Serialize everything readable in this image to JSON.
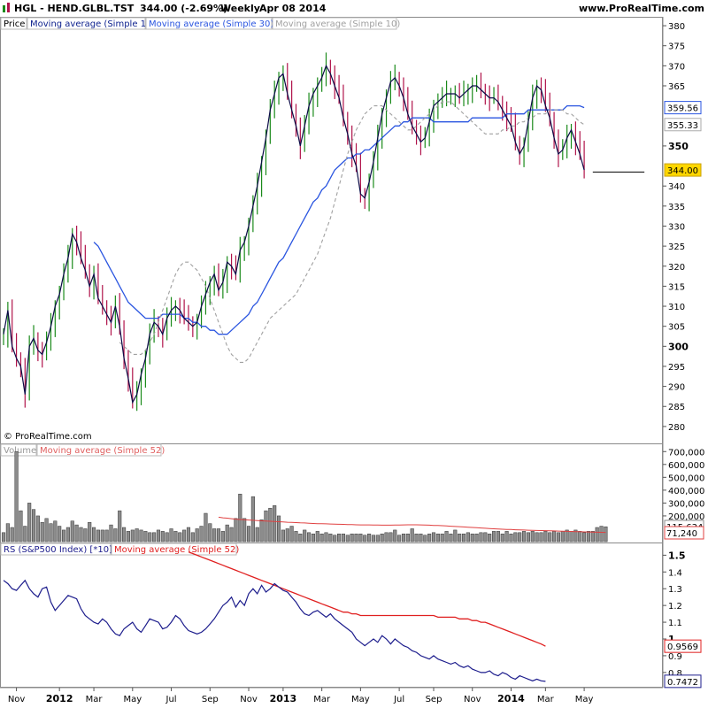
{
  "header": {
    "symbol_title": "HGL - HEND.GLBL.TST",
    "last_change": "344.00 (-2.69%)",
    "period": "Weekly",
    "date": "Apr 08 2014",
    "site": "www.ProRealTime.com",
    "watermark": "© ProRealTime.com"
  },
  "colors": {
    "up": "#1a8a1a",
    "down": "#b0134a",
    "close_line": "#0a0a46",
    "ma1": "#0a1e8c",
    "ma30": "#2a55e0",
    "ma10": "#a0a0a0",
    "volume_bar": "#8c8c8c",
    "volume_ma": "#e04040",
    "rs_line": "#1c1c8c",
    "rs_ma": "#e02020",
    "last_badge": "#ffd700"
  },
  "price_panel": {
    "legend": [
      "Price",
      "Moving average (Simple 1)",
      "Moving average (Simple 30)",
      "Moving average (Simple 10)"
    ],
    "ylim": [
      276,
      382
    ],
    "ticks": [
      {
        "value": 380,
        "label": "380",
        "bold": false
      },
      {
        "value": 375,
        "label": "375",
        "bold": false
      },
      {
        "value": 370,
        "label": "370",
        "bold": false
      },
      {
        "value": 365,
        "label": "365",
        "bold": false
      },
      {
        "value": 350,
        "label": "350",
        "bold": true
      },
      {
        "value": 340,
        "label": "340",
        "bold": false
      },
      {
        "value": 335,
        "label": "335",
        "bold": false
      },
      {
        "value": 330,
        "label": "330",
        "bold": false
      },
      {
        "value": 325,
        "label": "325",
        "bold": false
      },
      {
        "value": 320,
        "label": "320",
        "bold": false
      },
      {
        "value": 315,
        "label": "315",
        "bold": false
      },
      {
        "value": 310,
        "label": "310",
        "bold": false
      },
      {
        "value": 305,
        "label": "305",
        "bold": false
      },
      {
        "value": 300,
        "label": "300",
        "bold": true
      },
      {
        "value": 295,
        "label": "295",
        "bold": false
      },
      {
        "value": 290,
        "label": "290",
        "bold": false
      },
      {
        "value": 285,
        "label": "285",
        "bold": false
      },
      {
        "value": 280,
        "label": "280",
        "bold": false
      }
    ],
    "badges": [
      {
        "value": 359.56,
        "label": "359.56",
        "style": "ma30"
      },
      {
        "value": 355.33,
        "label": "355.33",
        "style": "ma10"
      },
      {
        "value": 344.0,
        "label": "344.00",
        "style": "last"
      }
    ],
    "support_line": {
      "value": 343.5,
      "from_week": 137,
      "to_week": 149
    }
  },
  "volume_panel": {
    "legend": [
      "Volume",
      "Moving average (Simple 52)"
    ],
    "ylim": [
      0,
      750000
    ],
    "ticks": [
      {
        "value": 700000,
        "label": "700,000"
      },
      {
        "value": 600000,
        "label": "600,000"
      },
      {
        "value": 500000,
        "label": "500,000"
      },
      {
        "value": 400000,
        "label": "400,000"
      },
      {
        "value": 300000,
        "label": "300,000"
      },
      {
        "value": 200000,
        "label": "200,000"
      }
    ],
    "badges": [
      {
        "value": 115634,
        "label": "115,634",
        "style": "vol"
      },
      {
        "value": 71240,
        "label": "71,240",
        "style": "volma"
      }
    ]
  },
  "rs_panel": {
    "legend": [
      "RS (S&P500 Index) [*10]",
      "Moving average (Simple 52)"
    ],
    "ylim": [
      0.72,
      1.56
    ],
    "ticks": [
      {
        "value": 1.5,
        "label": "1.5",
        "bold": true
      },
      {
        "value": 1.4,
        "label": "1.4",
        "bold": false
      },
      {
        "value": 1.3,
        "label": "1.3",
        "bold": false
      },
      {
        "value": 1.2,
        "label": "1.2",
        "bold": false
      },
      {
        "value": 1.1,
        "label": "1.1",
        "bold": false
      },
      {
        "value": 1.0,
        "label": "1",
        "bold": true
      },
      {
        "value": 0.9,
        "label": "0.9",
        "bold": false
      },
      {
        "value": 0.8,
        "label": "0.8",
        "bold": false
      }
    ],
    "badges": [
      {
        "value": 0.9569,
        "label": "0.9569",
        "style": "rsma"
      },
      {
        "value": 0.7472,
        "label": "0.7472",
        "style": "rs"
      }
    ]
  },
  "x_axis": {
    "labels": [
      {
        "week": 3,
        "label": "Nov",
        "bold": false
      },
      {
        "week": 13,
        "label": "2012",
        "bold": true
      },
      {
        "week": 21,
        "label": "Mar",
        "bold": false
      },
      {
        "week": 30,
        "label": "May",
        "bold": false
      },
      {
        "week": 39,
        "label": "Jul",
        "bold": false
      },
      {
        "week": 48,
        "label": "Sep",
        "bold": false
      },
      {
        "week": 57,
        "label": "Nov",
        "bold": false
      },
      {
        "week": 65,
        "label": "2013",
        "bold": true
      },
      {
        "week": 74,
        "label": "Mar",
        "bold": false
      },
      {
        "week": 83,
        "label": "May",
        "bold": false
      },
      {
        "week": 92,
        "label": "Jul",
        "bold": false
      },
      {
        "week": 100,
        "label": "Sep",
        "bold": false
      },
      {
        "week": 109,
        "label": "Nov",
        "bold": false
      },
      {
        "week": 118,
        "label": "2014",
        "bold": true
      },
      {
        "week": 126,
        "label": "Mar",
        "bold": false
      },
      {
        "week": 135,
        "label": "May",
        "bold": false
      }
    ]
  },
  "chart_data": {
    "type": "line",
    "x_unit": "weeks",
    "closes": [
      303,
      309,
      300,
      297,
      295,
      288,
      300,
      302,
      299,
      298,
      301,
      305,
      310,
      313,
      318,
      322,
      328,
      326,
      322,
      319,
      315,
      318,
      312,
      310,
      308,
      306,
      310,
      305,
      297,
      292,
      286,
      288,
      293,
      297,
      303,
      306,
      305,
      303,
      307,
      309,
      310,
      309,
      307,
      306,
      305,
      306,
      310,
      313,
      316,
      318,
      314,
      316,
      321,
      320,
      318,
      324,
      326,
      330,
      335,
      340,
      346,
      352,
      359,
      363,
      367,
      368,
      363,
      359,
      355,
      350,
      355,
      360,
      363,
      365,
      367,
      370,
      368,
      365,
      362,
      357,
      353,
      348,
      345,
      338,
      337,
      341,
      346,
      352,
      358,
      362,
      366,
      367,
      365,
      362,
      358,
      355,
      353,
      351,
      352,
      356,
      360,
      361,
      362,
      363,
      363,
      363,
      362,
      363,
      364,
      365,
      365,
      364,
      363,
      362,
      362,
      361,
      359,
      357,
      355,
      351,
      348,
      350,
      356,
      362,
      365,
      364,
      360,
      357,
      352,
      348,
      349,
      352,
      354,
      351,
      348,
      344
    ],
    "series": [
      {
        "name": "Moving average (Simple 30)",
        "values": [
          326,
          325,
          323,
          321,
          319,
          317,
          315,
          313,
          311,
          310,
          309,
          308,
          307,
          307,
          307,
          307,
          308,
          308,
          308,
          308,
          308,
          307,
          307,
          306,
          306,
          305,
          305,
          304,
          304,
          303,
          303,
          303,
          304,
          305,
          306,
          307,
          308,
          310,
          311,
          313,
          315,
          317,
          319,
          321,
          322,
          324,
          326,
          328,
          330,
          332,
          334,
          336,
          337,
          339,
          340,
          342,
          344,
          345,
          346,
          347,
          347,
          348,
          348,
          349,
          349,
          350,
          351,
          352,
          353,
          354,
          355,
          355,
          356,
          356,
          357,
          357,
          357,
          357,
          357,
          356,
          356,
          356,
          356,
          356,
          356,
          356,
          356,
          356,
          357,
          357,
          357,
          357,
          357,
          357,
          357,
          357,
          358,
          358,
          358,
          358,
          358,
          359,
          359,
          359,
          359,
          359,
          359,
          359,
          359,
          359,
          360,
          360,
          360,
          360,
          359.56
        ]
      },
      {
        "name": "Moving average (Simple 10)",
        "values": [
          301,
          300,
          299,
          298,
          298,
          298,
          299,
          301,
          303,
          306,
          309,
          312,
          315,
          318,
          320,
          321,
          321,
          320,
          319,
          317,
          315,
          312,
          309,
          306,
          303,
          300,
          298,
          297,
          296,
          296,
          297,
          299,
          301,
          303,
          305,
          307,
          308,
          309,
          310,
          311,
          312,
          313,
          315,
          317,
          319,
          321,
          323,
          326,
          329,
          332,
          336,
          340,
          344,
          348,
          351,
          354,
          356,
          358,
          359,
          360,
          360,
          360,
          359,
          358,
          357,
          356,
          355,
          354,
          354,
          355,
          356,
          357,
          358,
          359,
          360,
          361,
          361,
          361,
          360,
          359,
          358,
          357,
          356,
          355,
          354,
          353,
          353,
          353,
          353,
          354,
          354,
          355,
          355,
          356,
          356,
          357,
          357,
          358,
          358,
          358,
          359,
          359,
          359,
          359,
          358,
          358,
          357,
          356,
          355.33
        ]
      }
    ],
    "volume": [
      70000,
      140000,
      110000,
      700000,
      240000,
      120000,
      300000,
      250000,
      200000,
      150000,
      180000,
      140000,
      160000,
      120000,
      90000,
      110000,
      160000,
      130000,
      110000,
      100000,
      150000,
      110000,
      90000,
      90000,
      90000,
      130000,
      100000,
      240000,
      110000,
      80000,
      90000,
      100000,
      90000,
      80000,
      70000,
      70000,
      90000,
      80000,
      70000,
      100000,
      80000,
      70000,
      90000,
      110000,
      70000,
      100000,
      120000,
      220000,
      140000,
      100000,
      100000,
      80000,
      130000,
      110000,
      180000,
      370000,
      180000,
      120000,
      350000,
      110000,
      170000,
      240000,
      260000,
      280000,
      200000,
      90000,
      100000,
      120000,
      80000,
      60000,
      90000,
      70000,
      60000,
      80000,
      60000,
      70000,
      60000,
      50000,
      60000,
      60000,
      50000,
      60000,
      60000,
      60000,
      50000,
      60000,
      50000,
      50000,
      60000,
      70000,
      70000,
      90000,
      50000,
      60000,
      60000,
      100000,
      60000,
      60000,
      50000,
      60000,
      70000,
      60000,
      60000,
      80000,
      60000,
      90000,
      60000,
      60000,
      70000,
      60000,
      60000,
      70000,
      70000,
      60000,
      80000,
      80000,
      60000,
      80000,
      60000,
      70000,
      70000,
      80000,
      70000,
      80000,
      70000,
      70000,
      80000,
      70000,
      80000,
      70000,
      80000,
      90000,
      80000,
      90000,
      80000,
      70000,
      80000,
      80000,
      110000,
      120000,
      115634
    ],
    "volume_ma": [
      190000,
      185000,
      182000,
      178000,
      175000,
      172000,
      170000,
      168000,
      166000,
      164000,
      162000,
      160000,
      158000,
      156000,
      155000,
      153000,
      151000,
      150000,
      148000,
      146000,
      145000,
      143000,
      141000,
      140000,
      139000,
      138000,
      137000,
      136000,
      135000,
      134000,
      133000,
      132000,
      131000,
      130000,
      130000,
      130000,
      129000,
      129000,
      128000,
      128000,
      128000,
      129000,
      129000,
      130000,
      131000,
      131000,
      131000,
      130000,
      129000,
      128000,
      126000,
      125000,
      124000,
      122000,
      120000,
      118000,
      116000,
      114000,
      112000,
      110000,
      108000,
      106000,
      104000,
      102000,
      100000,
      98000,
      96000,
      95000,
      94000,
      92000,
      91000,
      90000,
      89000,
      88000,
      87000,
      86000,
      85000,
      84000,
      83000,
      82000,
      81000,
      80000,
      79000,
      78000,
      77000,
      76000,
      75000,
      74000,
      73000,
      72000,
      71240
    ],
    "rs": [
      1.35,
      1.33,
      1.3,
      1.29,
      1.32,
      1.35,
      1.3,
      1.27,
      1.25,
      1.3,
      1.31,
      1.22,
      1.17,
      1.2,
      1.23,
      1.26,
      1.25,
      1.24,
      1.18,
      1.14,
      1.12,
      1.1,
      1.09,
      1.12,
      1.1,
      1.06,
      1.03,
      1.02,
      1.06,
      1.08,
      1.1,
      1.06,
      1.04,
      1.08,
      1.12,
      1.11,
      1.1,
      1.06,
      1.07,
      1.1,
      1.14,
      1.12,
      1.08,
      1.05,
      1.04,
      1.03,
      1.04,
      1.06,
      1.09,
      1.12,
      1.16,
      1.2,
      1.22,
      1.25,
      1.19,
      1.23,
      1.2,
      1.27,
      1.3,
      1.27,
      1.32,
      1.28,
      1.3,
      1.33,
      1.31,
      1.29,
      1.28,
      1.25,
      1.22,
      1.18,
      1.15,
      1.14,
      1.16,
      1.17,
      1.15,
      1.13,
      1.15,
      1.12,
      1.1,
      1.08,
      1.06,
      1.04,
      1.0,
      0.98,
      0.96,
      0.98,
      1.0,
      0.98,
      1.02,
      1.0,
      0.97,
      1.0,
      0.98,
      0.96,
      0.95,
      0.93,
      0.92,
      0.9,
      0.89,
      0.88,
      0.9,
      0.88,
      0.87,
      0.86,
      0.85,
      0.86,
      0.84,
      0.83,
      0.84,
      0.82,
      0.81,
      0.8,
      0.8,
      0.81,
      0.79,
      0.78,
      0.8,
      0.79,
      0.77,
      0.76,
      0.78,
      0.77,
      0.76,
      0.75,
      0.76,
      0.75,
      0.7472
    ],
    "rs_ma": [
      1.52,
      1.51,
      1.5,
      1.49,
      1.48,
      1.47,
      1.46,
      1.45,
      1.44,
      1.43,
      1.42,
      1.41,
      1.4,
      1.39,
      1.38,
      1.37,
      1.36,
      1.35,
      1.34,
      1.33,
      1.32,
      1.31,
      1.3,
      1.29,
      1.28,
      1.27,
      1.26,
      1.25,
      1.24,
      1.23,
      1.22,
      1.21,
      1.2,
      1.19,
      1.18,
      1.17,
      1.16,
      1.16,
      1.15,
      1.15,
      1.14,
      1.14,
      1.14,
      1.14,
      1.14,
      1.14,
      1.14,
      1.14,
      1.14,
      1.14,
      1.14,
      1.14,
      1.14,
      1.14,
      1.14,
      1.14,
      1.14,
      1.14,
      1.13,
      1.13,
      1.13,
      1.13,
      1.13,
      1.12,
      1.12,
      1.12,
      1.11,
      1.11,
      1.1,
      1.1,
      1.09,
      1.08,
      1.07,
      1.06,
      1.05,
      1.04,
      1.03,
      1.02,
      1.01,
      1.0,
      0.99,
      0.98,
      0.97,
      0.9569
    ]
  }
}
